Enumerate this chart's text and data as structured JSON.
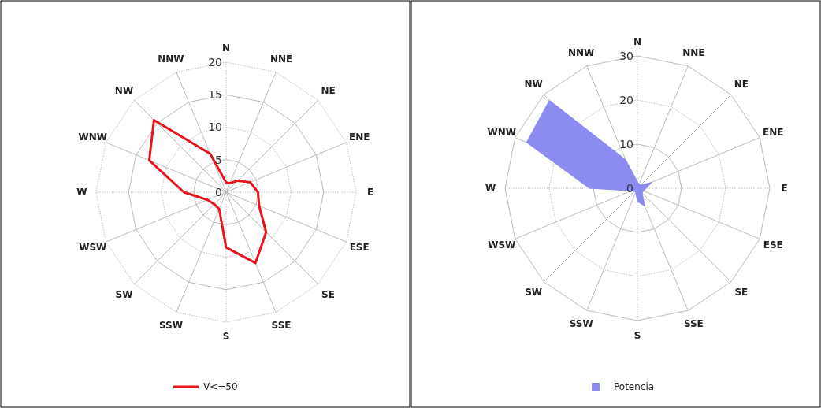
{
  "chart_data": [
    {
      "type": "radar",
      "categories": [
        "N",
        "NNE",
        "NE",
        "ENE",
        "E",
        "ESE",
        "SE",
        "SSE",
        "S",
        "SSW",
        "SW",
        "WSW",
        "W",
        "WNW",
        "NW",
        "NNW"
      ],
      "ylim": [
        0,
        20
      ],
      "yticks": [
        0,
        5,
        10,
        15,
        20
      ],
      "grid": true,
      "legend": "bottom",
      "series": [
        {
          "name": "V<=50",
          "color": "#e8141c",
          "values": [
            1.5,
            1.5,
            2.5,
            4,
            4.9,
            5.5,
            8.7,
            11.8,
            8.5,
            2.8,
            2.6,
            3.1,
            6.5,
            12.8,
            15.7,
            6.4
          ]
        }
      ]
    },
    {
      "type": "radar",
      "categories": [
        "N",
        "NNE",
        "NE",
        "ENE",
        "E",
        "ESE",
        "SE",
        "SSE",
        "S",
        "SSW",
        "SW",
        "WSW",
        "W",
        "WNW",
        "NW",
        "NNW"
      ],
      "ylim": [
        0,
        30
      ],
      "yticks": [
        0,
        10,
        20,
        30
      ],
      "grid": true,
      "legend": "bottom",
      "series": [
        {
          "type": "area",
          "name": "Potencia",
          "color": "#8b8bf0",
          "values": [
            1.5,
            1,
            1,
            3.5,
            2,
            1.5,
            1.5,
            4.4,
            3,
            1,
            1,
            1.5,
            10.9,
            27.2,
            28.2,
            7
          ]
        }
      ]
    }
  ]
}
